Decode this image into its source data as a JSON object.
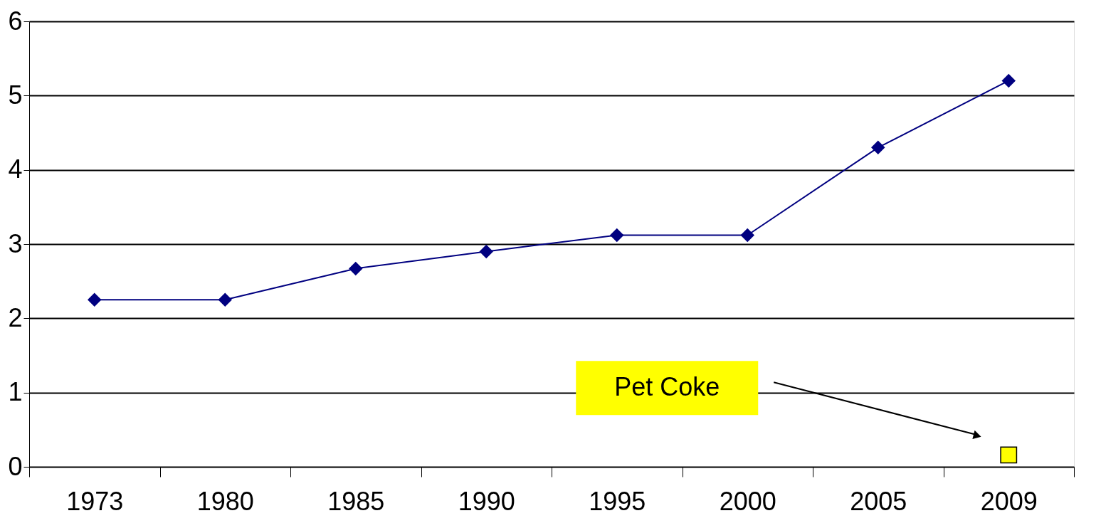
{
  "chart_data": {
    "type": "line",
    "categories": [
      "1973",
      "1980",
      "1985",
      "1990",
      "1995",
      "2000",
      "2005",
      "2009"
    ],
    "series": [
      {
        "color": "#000080",
        "marker": "diamond",
        "values": [
          2.25,
          2.25,
          2.67,
          2.9,
          3.12,
          3.12,
          4.3,
          5.2
        ]
      },
      {
        "type": "scatter",
        "color": "#ffff00",
        "marker": "square",
        "values": [
          null,
          null,
          null,
          null,
          null,
          null,
          null,
          0.16
        ]
      }
    ],
    "ylim": [
      0,
      6
    ],
    "yticks": [
      0,
      1,
      2,
      3,
      4,
      5,
      6
    ],
    "grid": "y",
    "annotations": [
      "Pet Coke"
    ]
  }
}
